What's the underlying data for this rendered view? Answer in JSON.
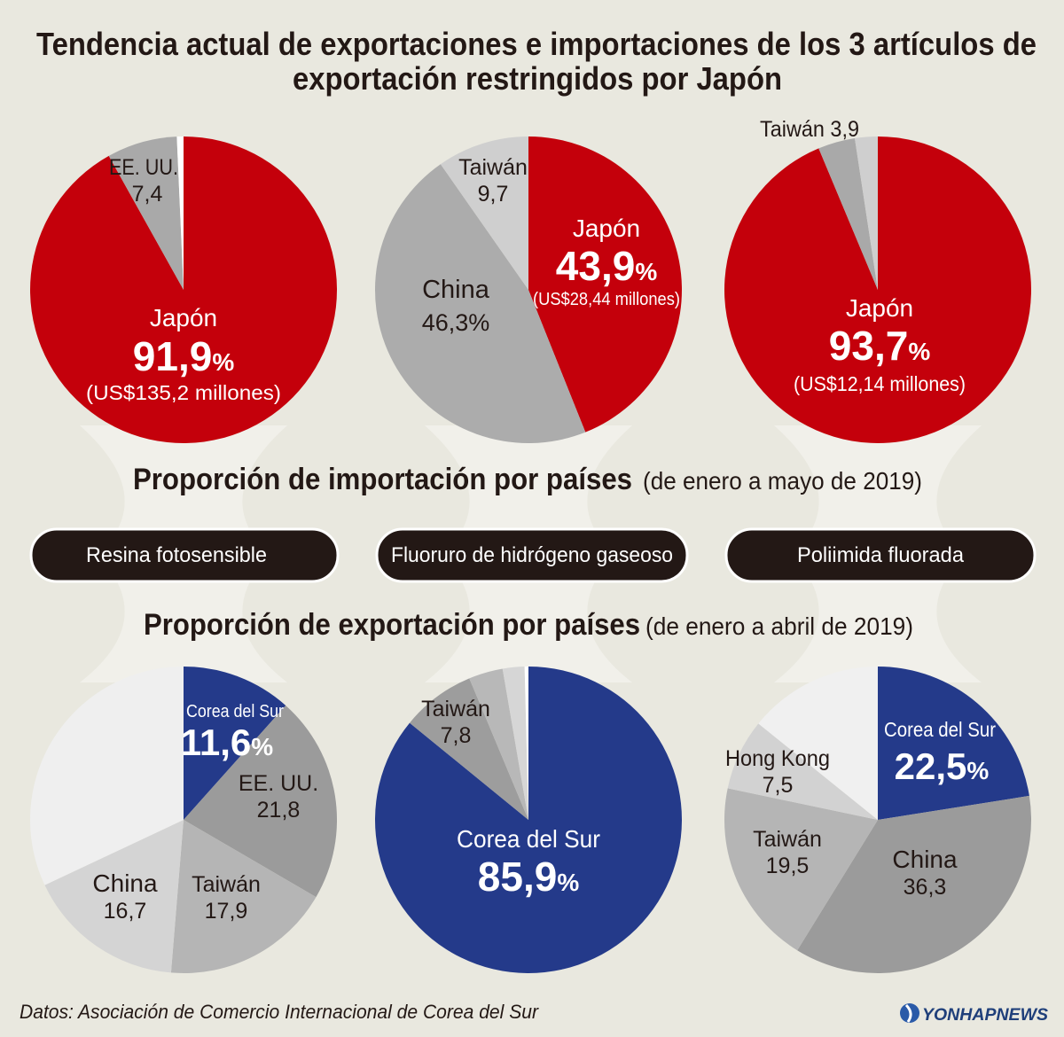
{
  "title": {
    "line1": "Tendencia actual de exportaciones e importaciones de los 3 artículos de",
    "line2": "exportación restringidos por Japón"
  },
  "import_heading": {
    "main": "Proporción de importación por países",
    "period": "(de enero a mayo de 2019)"
  },
  "export_heading": {
    "main": "Proporción de exportación por países",
    "period": "(de enero a abril de 2019)"
  },
  "products": [
    "Resina fotosensible",
    "Fluoruro de hidrógeno gaseoso",
    "Poliimida fluorada"
  ],
  "footer": {
    "source": "Datos: Asociación de Comercio Internacional de Corea del Sur",
    "logo": "YONHAPNEWS"
  },
  "colors": {
    "japan": "#c4000b",
    "korea": "#243a8a",
    "background": "#e9e8df",
    "button": "#231815"
  },
  "chart_data": [
    {
      "type": "pie",
      "group": "import",
      "product": "Resina fotosensible",
      "slices": [
        {
          "label": "Japón",
          "value": 91.9,
          "color": "#c4000b"
        },
        {
          "label": "EE. UU.",
          "value": 7.4,
          "color": "#a9a9a9"
        },
        {
          "label": "",
          "value": 0.7,
          "color": "#ffffff"
        }
      ],
      "labels": {
        "a_name": "Japón",
        "a_value": "91,9",
        "a_sub": "(US$135,2 millones)",
        "b_name": "EE. UU.",
        "b_value": "7,4"
      }
    },
    {
      "type": "pie",
      "group": "import",
      "product": "Fluoruro de hidrógeno gaseoso",
      "slices": [
        {
          "label": "Japón",
          "value": 43.9,
          "color": "#c4000b"
        },
        {
          "label": "China",
          "value": 46.3,
          "color": "#acacac"
        },
        {
          "label": "Taiwán",
          "value": 9.7,
          "color": "#cfcfcf"
        }
      ],
      "labels": {
        "a_name": "Japón",
        "a_value": "43,9",
        "a_sub": "(US$28,44 millones)",
        "b_name": "China",
        "b_value": "46,3%",
        "c_name": "Taiwán",
        "c_value": "9,7"
      }
    },
    {
      "type": "pie",
      "group": "import",
      "product": "Poliimida fluorada",
      "slices": [
        {
          "label": "Japón",
          "value": 93.7,
          "color": "#c4000b"
        },
        {
          "label": "Taiwán",
          "value": 3.9,
          "color": "#a9a9a9"
        },
        {
          "label": "",
          "value": 2.4,
          "color": "#cfcfcf"
        }
      ],
      "labels": {
        "a_name": "Japón",
        "a_value": "93,7",
        "a_sub": "(US$12,14 millones)",
        "b_text": "Taiwán 3,9"
      }
    },
    {
      "type": "pie",
      "group": "export",
      "product": "Resina fotosensible",
      "slices": [
        {
          "label": "Corea del Sur",
          "value": 11.6,
          "color": "#243a8a"
        },
        {
          "label": "EE. UU.",
          "value": 21.8,
          "color": "#9b9b9b"
        },
        {
          "label": "Taiwán",
          "value": 17.9,
          "color": "#b5b5b5"
        },
        {
          "label": "China",
          "value": 16.7,
          "color": "#d4d4d4"
        },
        {
          "label": "",
          "value": 32.0,
          "color": "#efefef"
        }
      ],
      "labels": {
        "a_name": "Corea del Sur",
        "a_value": "11,6",
        "b_name": "EE. UU.",
        "b_value": "21,8",
        "c_name": "Taiwán",
        "c_value": "17,9",
        "d_name": "China",
        "d_value": "16,7"
      }
    },
    {
      "type": "pie",
      "group": "export",
      "product": "Fluoruro de hidrógeno gaseoso",
      "slices": [
        {
          "label": "Corea del Sur",
          "value": 85.9,
          "color": "#243a8a"
        },
        {
          "label": "Taiwán",
          "value": 7.8,
          "color": "#9d9d9d"
        },
        {
          "label": "",
          "value": 3.6,
          "color": "#b8b8b8"
        },
        {
          "label": "",
          "value": 2.3,
          "color": "#d6d6d6"
        },
        {
          "label": "",
          "value": 0.4,
          "color": "#ffffff"
        }
      ],
      "labels": {
        "a_name": "Corea del Sur",
        "a_value": "85,9",
        "b_name": "Taiwán",
        "b_value": "7,8"
      }
    },
    {
      "type": "pie",
      "group": "export",
      "product": "Poliimida fluorada",
      "slices": [
        {
          "label": "Corea del Sur",
          "value": 22.5,
          "color": "#243a8a"
        },
        {
          "label": "China",
          "value": 36.3,
          "color": "#9b9b9b"
        },
        {
          "label": "Taiwán",
          "value": 19.5,
          "color": "#b5b5b5"
        },
        {
          "label": "Hong Kong",
          "value": 7.5,
          "color": "#d2d2d2"
        },
        {
          "label": "",
          "value": 14.2,
          "color": "#f0f0f0"
        }
      ],
      "labels": {
        "a_name": "Corea del Sur",
        "a_value": "22,5",
        "b_name": "China",
        "b_value": "36,3",
        "c_name": "Taiwán",
        "c_value": "19,5",
        "d_name": "Hong Kong",
        "d_value": "7,5"
      }
    }
  ],
  "pct_sign": "%"
}
